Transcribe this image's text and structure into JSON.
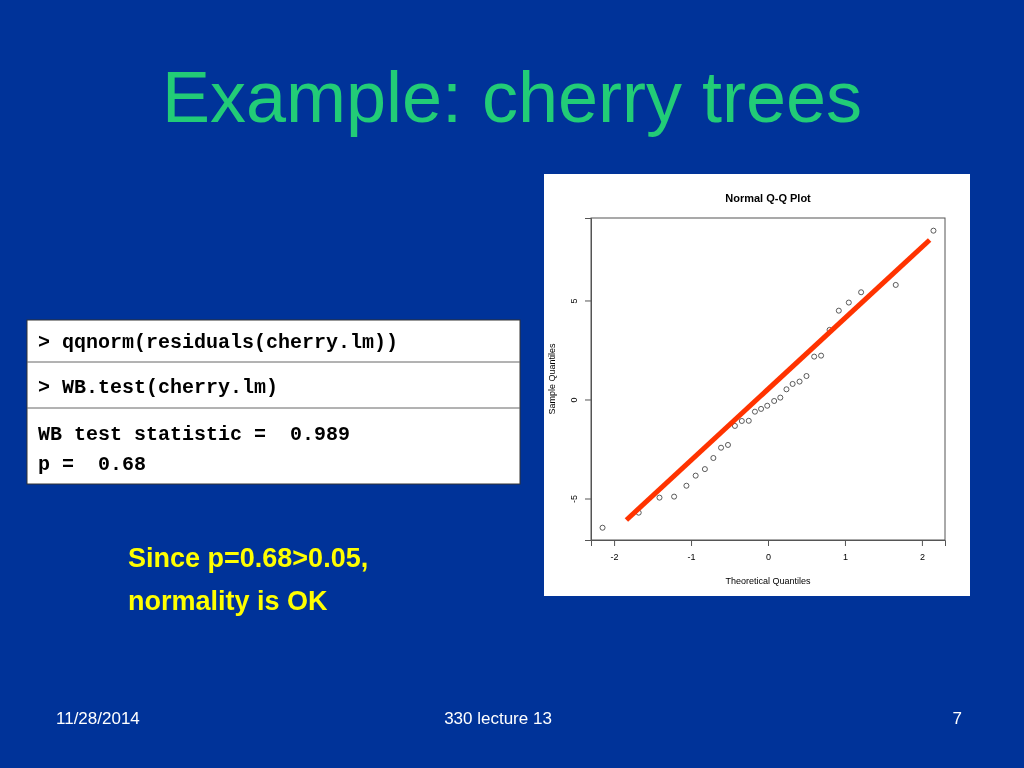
{
  "chart_data": {
    "type": "scatter",
    "title": "Normal Q-Q Plot",
    "xlabel": "Theoretical Quantiles",
    "ylabel": "Sample Quantiles",
    "xlim": [
      -2.3,
      2.3
    ],
    "ylim": [
      -7.07,
      9.19
    ],
    "xticks": [
      -2,
      -1,
      0,
      1,
      2
    ],
    "yticks": [
      -5,
      0,
      5
    ],
    "grid": false,
    "series": [
      {
        "marker": "circle",
        "color": "#333333",
        "x": [
          -2.15,
          -1.68,
          -1.41,
          -1.22,
          -1.06,
          -0.94,
          -0.82,
          -0.71,
          -0.61,
          -0.52,
          -0.43,
          -0.34,
          -0.25,
          -0.17,
          -0.09,
          -0.01,
          0.08,
          0.16,
          0.24,
          0.32,
          0.41,
          0.5,
          0.6,
          0.69,
          0.8,
          0.92,
          1.05,
          1.21,
          1.66,
          2.15
        ],
        "values": [
          -6.45,
          -5.69,
          -4.93,
          -4.88,
          -4.33,
          -3.82,
          -3.49,
          -2.93,
          -2.41,
          -2.27,
          -1.31,
          -1.06,
          -1.05,
          -0.59,
          -0.45,
          -0.29,
          -0.05,
          0.12,
          0.54,
          0.81,
          0.93,
          1.21,
          2.19,
          2.24,
          3.54,
          4.51,
          4.92,
          5.44,
          5.81,
          8.55
        ]
      },
      {
        "type": "line",
        "marker": "none",
        "color": "#ff3300",
        "x": [
          -1.84,
          2.1
        ],
        "values": [
          -6.06,
          8.08
        ]
      }
    ],
    "annotations": [
      "Example: cherry trees",
      "> qqnorm(residuals(cherry.lm))",
      "> WB.test(cherry.lm)",
      "WB test statistic =  0.989",
      "p =  0.68",
      "Since p=0.68>0.05,",
      "normality is OK",
      "11/28/2014",
      "330 lecture 13",
      "7"
    ]
  }
}
